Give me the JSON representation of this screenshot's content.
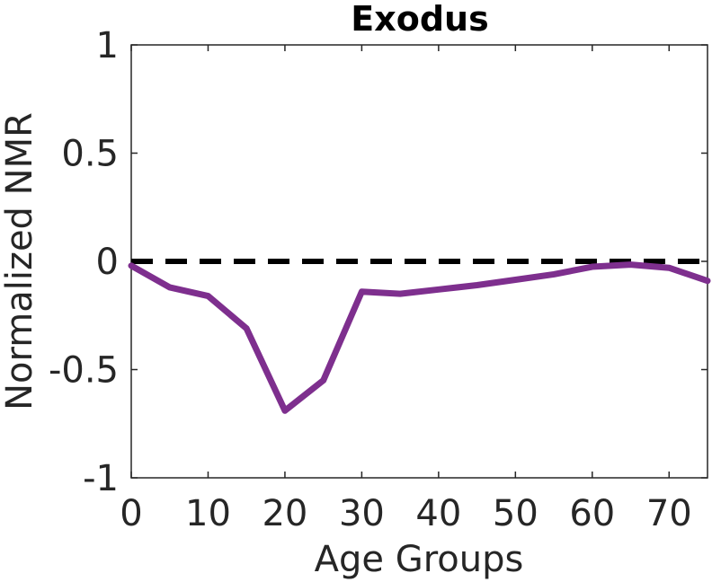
{
  "chart_data": {
    "type": "line",
    "title": "Exodus",
    "xlabel": "Age Groups",
    "ylabel": "Normalized NMR",
    "xlim": [
      0,
      75
    ],
    "ylim": [
      -1,
      1
    ],
    "xticks": [
      "0",
      "10",
      "20",
      "30",
      "40",
      "50",
      "60",
      "70"
    ],
    "xtick_values": [
      0,
      10,
      20,
      30,
      40,
      50,
      60,
      70
    ],
    "yticks": [
      "-1",
      "-0.5",
      "0",
      "0.5",
      "1"
    ],
    "ytick_values": [
      -1,
      -0.5,
      0,
      0.5,
      1
    ],
    "grid": false,
    "series": [
      {
        "color": "#7e2f8e",
        "x": [
          0,
          5,
          10,
          15,
          20,
          25,
          30,
          35,
          40,
          45,
          50,
          55,
          60,
          65,
          70,
          75
        ],
        "y": [
          -0.02,
          -0.12,
          -0.16,
          -0.31,
          -0.69,
          -0.55,
          -0.14,
          -0.15,
          -0.13,
          -0.11,
          -0.085,
          -0.06,
          -0.025,
          -0.015,
          -0.03,
          -0.09
        ]
      }
    ],
    "reference_line": {
      "y": 0,
      "color": "#000000",
      "style": "dashed"
    }
  }
}
